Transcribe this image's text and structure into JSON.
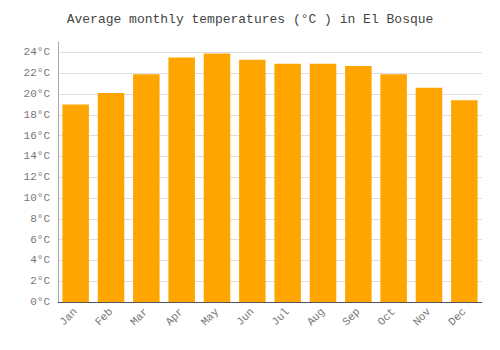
{
  "chart_data": {
    "type": "bar",
    "title": "Average monthly temperatures (°C ) in El Bosque",
    "categories": [
      "Jan",
      "Feb",
      "Mar",
      "Apr",
      "May",
      "Jun",
      "Jul",
      "Aug",
      "Sep",
      "Oct",
      "Nov",
      "Dec"
    ],
    "values": [
      19.0,
      20.1,
      21.9,
      23.5,
      23.9,
      23.3,
      22.9,
      22.9,
      22.7,
      21.9,
      20.6,
      19.4
    ],
    "color": "#FFA500",
    "ylim": [
      0,
      25
    ],
    "yticks": [
      {
        "value": 0,
        "label": "0°C"
      },
      {
        "value": 2,
        "label": "2°C"
      },
      {
        "value": 4,
        "label": "4°C"
      },
      {
        "value": 6,
        "label": "6°C"
      },
      {
        "value": 8,
        "label": "8°C"
      },
      {
        "value": 10,
        "label": "10°C"
      },
      {
        "value": 12,
        "label": "12°C"
      },
      {
        "value": 14,
        "label": "14°C"
      },
      {
        "value": 16,
        "label": "16°C"
      },
      {
        "value": 18,
        "label": "18°C"
      },
      {
        "value": 20,
        "label": "20°C"
      },
      {
        "value": 22,
        "label": "22°C"
      },
      {
        "value": 24,
        "label": "24°C"
      }
    ],
    "grid": true
  }
}
